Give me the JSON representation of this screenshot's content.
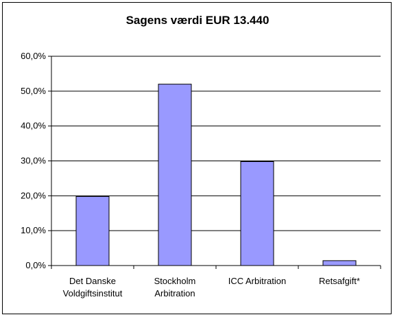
{
  "chart_data": {
    "type": "bar",
    "title": "Sagens værdi EUR 13.440",
    "categories": [
      [
        "Det Danske",
        "Voldgiftsinstitut"
      ],
      [
        "Stockholm",
        "Arbitration"
      ],
      [
        "ICC Arbitration"
      ],
      [
        "Retsafgift*"
      ]
    ],
    "values": [
      19.8,
      52.0,
      29.8,
      1.4
    ],
    "ylim": [
      0,
      60
    ],
    "yticks": [
      "0,0%",
      "10,0%",
      "20,0%",
      "30,0%",
      "40,0%",
      "50,0%",
      "60,0%"
    ],
    "grid": true,
    "colors": {
      "bar_fill": "#9999ff",
      "bar_stroke": "#000000",
      "grid": "#000000"
    }
  }
}
